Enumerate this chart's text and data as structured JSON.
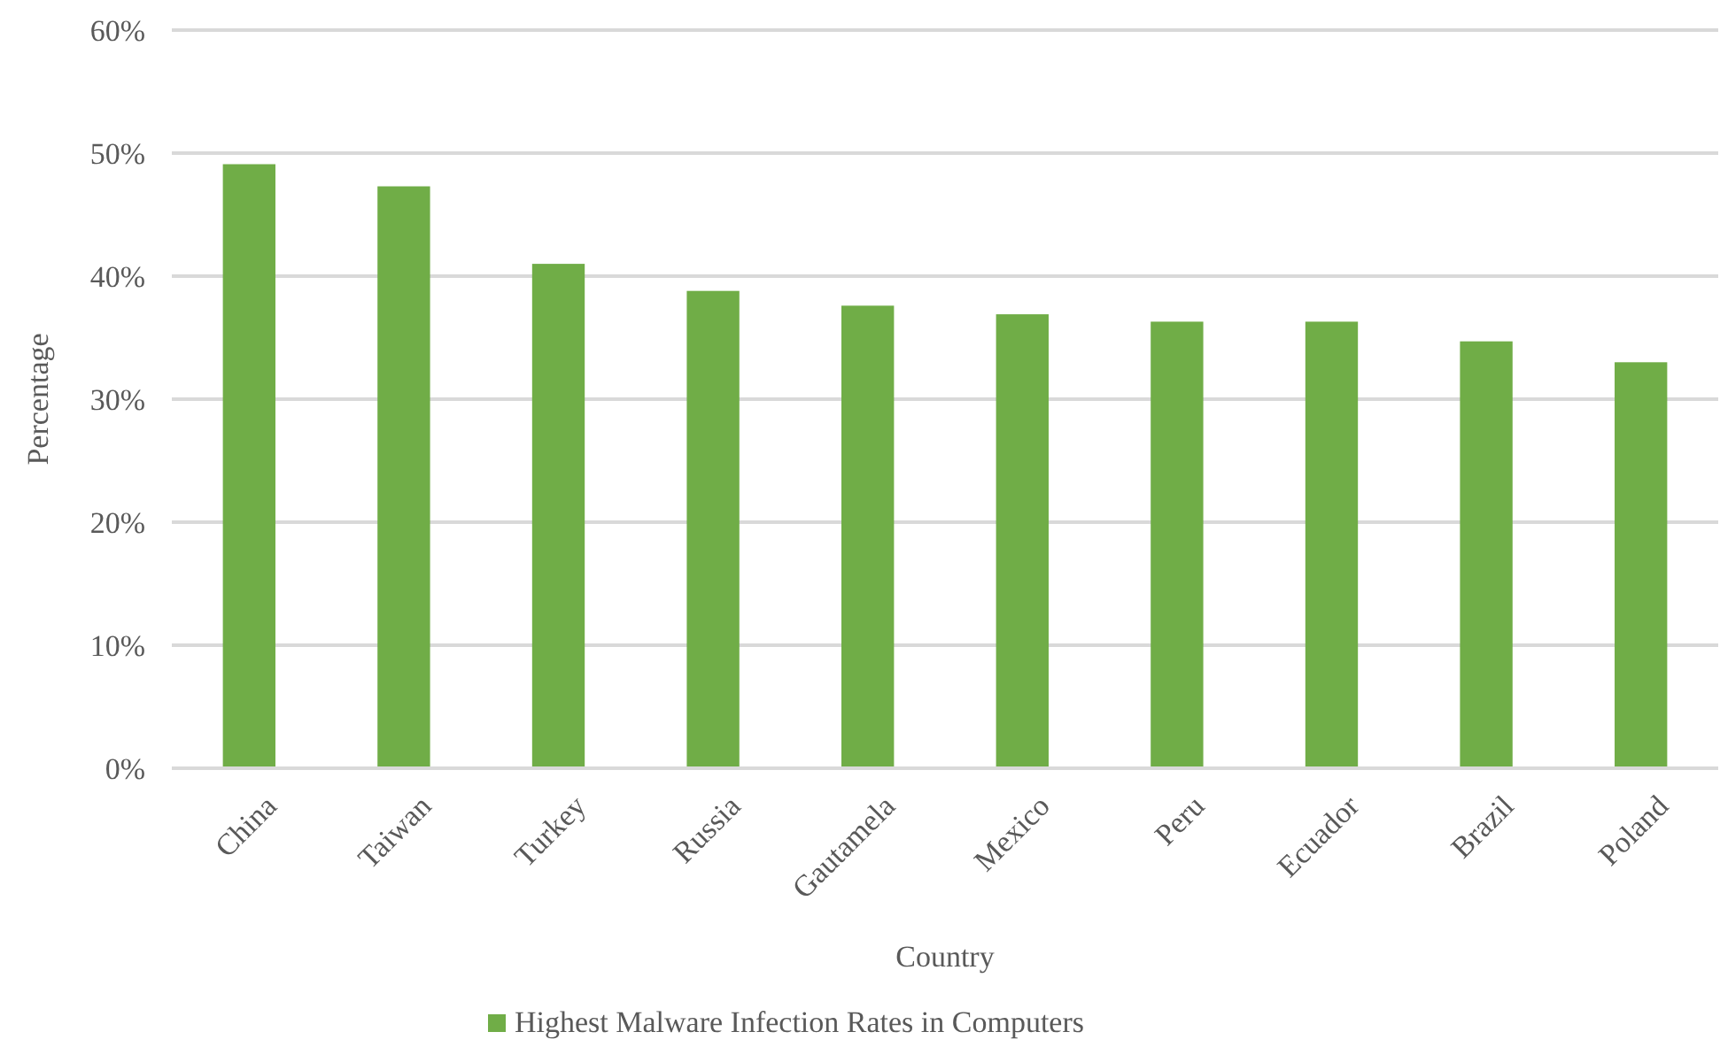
{
  "chart_data": {
    "type": "bar",
    "xlabel": "Country",
    "ylabel": "Percentage",
    "categories": [
      "China",
      "Taiwan",
      "Turkey",
      "Russia",
      "Gautamela",
      "Mexico",
      "Peru",
      "Ecuador",
      "Brazil",
      "Poland"
    ],
    "series": [
      {
        "name": "Highest Malware Infection Rates in Computers",
        "color": "#70ad47",
        "values": [
          49.1,
          47.3,
          41.0,
          38.8,
          37.6,
          36.9,
          36.3,
          36.3,
          34.7,
          33.0
        ]
      }
    ],
    "ylim": [
      0,
      60
    ],
    "yticks": [
      {
        "value": 0,
        "label": "0%"
      },
      {
        "value": 10,
        "label": "10%"
      },
      {
        "value": 20,
        "label": "20%"
      },
      {
        "value": 30,
        "label": "30%"
      },
      {
        "value": 40,
        "label": "40%"
      },
      {
        "value": 50,
        "label": "50%"
      },
      {
        "value": 60,
        "label": "60%"
      }
    ],
    "grid": "y",
    "legend": "bottom"
  }
}
